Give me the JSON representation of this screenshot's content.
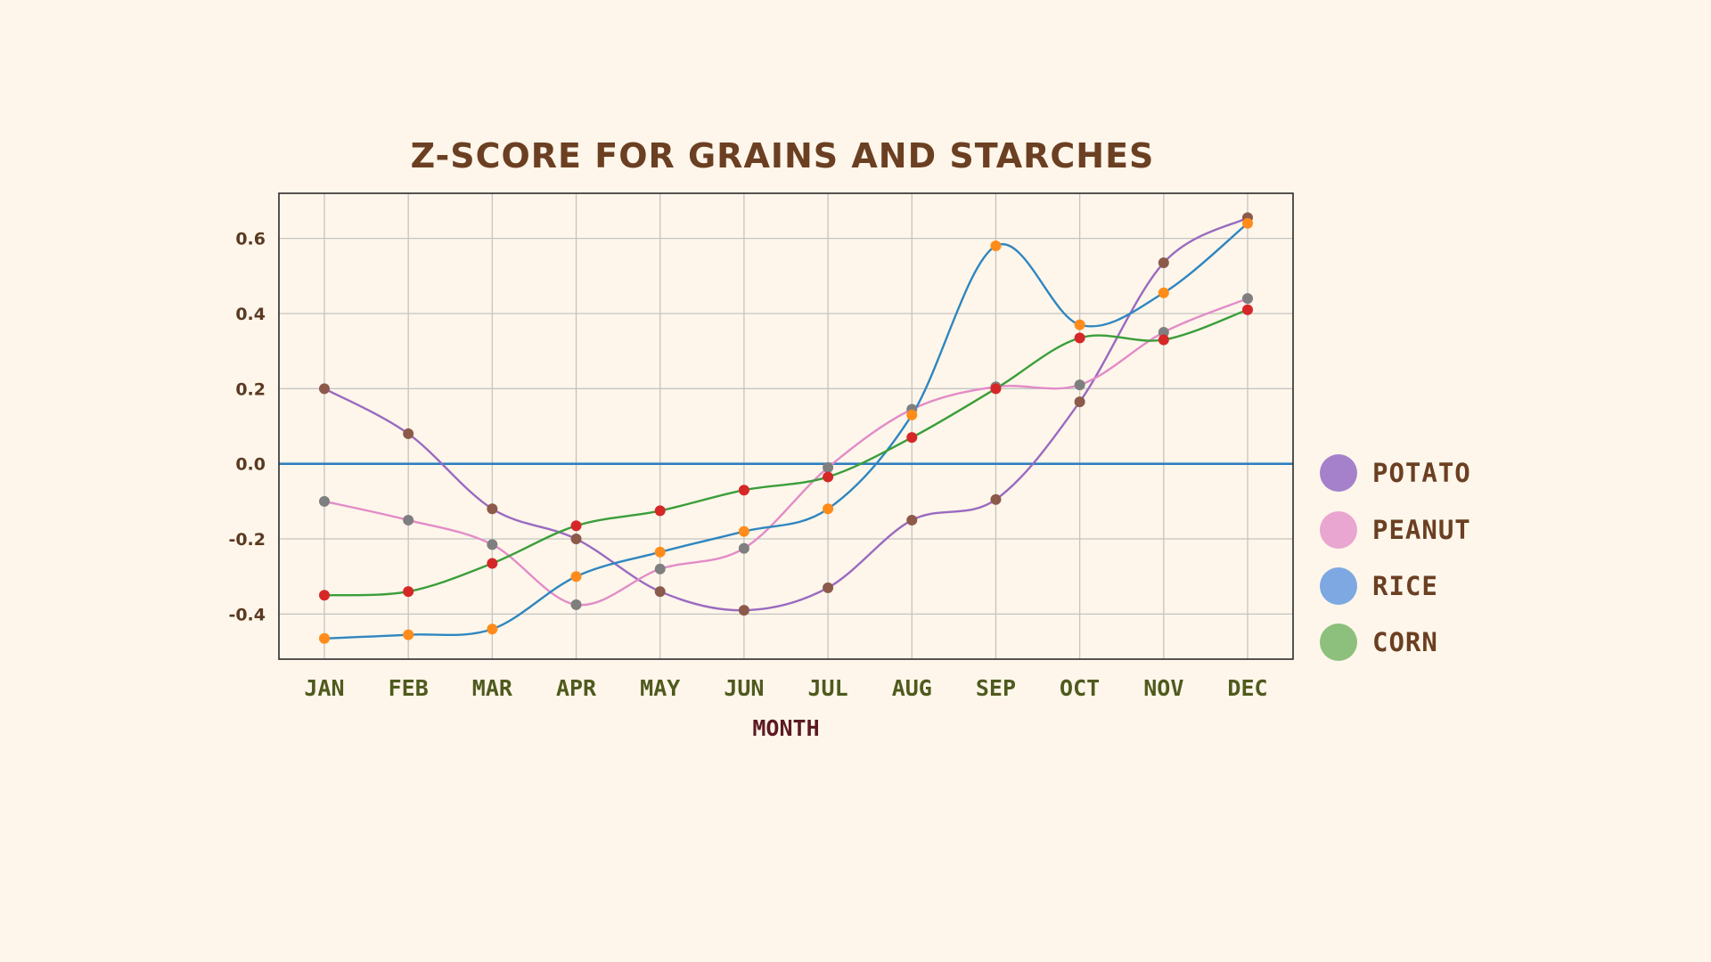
{
  "chart_data": {
    "type": "line",
    "title": "Z-SCORE FOR GRAINS AND STARCHES",
    "xlabel": "MONTH",
    "ylabel": "",
    "categories": [
      "JAN",
      "FEB",
      "MAR",
      "APR",
      "MAY",
      "JUN",
      "JUL",
      "AUG",
      "SEP",
      "OCT",
      "NOV",
      "DEC"
    ],
    "ylim": [
      -0.52,
      0.72
    ],
    "yticks": [
      "-0.4",
      "-0.2",
      "0.0",
      "0.2",
      "0.4",
      "0.6"
    ],
    "grid": true,
    "legend_position": "right",
    "zero_line_color": "#2f7fbf",
    "series": [
      {
        "name": "POTATO",
        "line_color": "#9a6ac0",
        "marker_color": "#8c5a4a",
        "legend_color": "#a581cc",
        "values": [
          0.2,
          0.08,
          -0.12,
          -0.2,
          -0.34,
          -0.39,
          -0.33,
          -0.15,
          -0.095,
          0.165,
          0.535,
          0.655
        ]
      },
      {
        "name": "PEANUT",
        "line_color": "#e28cc8",
        "marker_color": "#7f7f7f",
        "legend_color": "#e9a6d0",
        "values": [
          -0.1,
          -0.15,
          -0.215,
          -0.375,
          -0.28,
          -0.225,
          -0.01,
          0.145,
          0.205,
          0.21,
          0.35,
          0.44
        ]
      },
      {
        "name": "RICE",
        "line_color": "#2f86c0",
        "marker_color": "#ff8c1a",
        "legend_color": "#7da8e2",
        "values": [
          -0.465,
          -0.455,
          -0.44,
          -0.3,
          -0.235,
          -0.18,
          -0.12,
          0.13,
          0.58,
          0.37,
          0.455,
          0.64
        ]
      },
      {
        "name": "CORN",
        "line_color": "#3a9e3a",
        "marker_color": "#d62728",
        "legend_color": "#8cc07c",
        "values": [
          -0.35,
          -0.34,
          -0.265,
          -0.165,
          -0.125,
          -0.07,
          -0.035,
          0.07,
          0.2,
          0.335,
          0.33,
          0.41
        ]
      }
    ]
  }
}
